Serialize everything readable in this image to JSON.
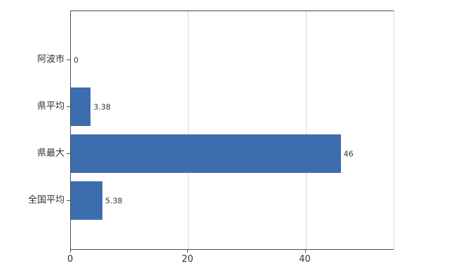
{
  "chart_data": {
    "type": "bar",
    "orientation": "horizontal",
    "title": "",
    "xlabel": "",
    "ylabel": "",
    "categories": [
      "阿波市",
      "県平均",
      "県最大",
      "全国平均"
    ],
    "values": [
      0,
      3.38,
      46,
      5.38
    ],
    "value_labels": [
      "0",
      "3.38",
      "46",
      "5.38"
    ],
    "x_ticks": [
      0,
      20,
      40
    ],
    "xlim": [
      0,
      55
    ],
    "grid": true,
    "legend": "none",
    "bar_color": "#3d6dae",
    "axis_color": "#4d4d4d",
    "grid_color": "#dcdcdc",
    "text_color": "#333333",
    "background_color": "#ffffff"
  }
}
